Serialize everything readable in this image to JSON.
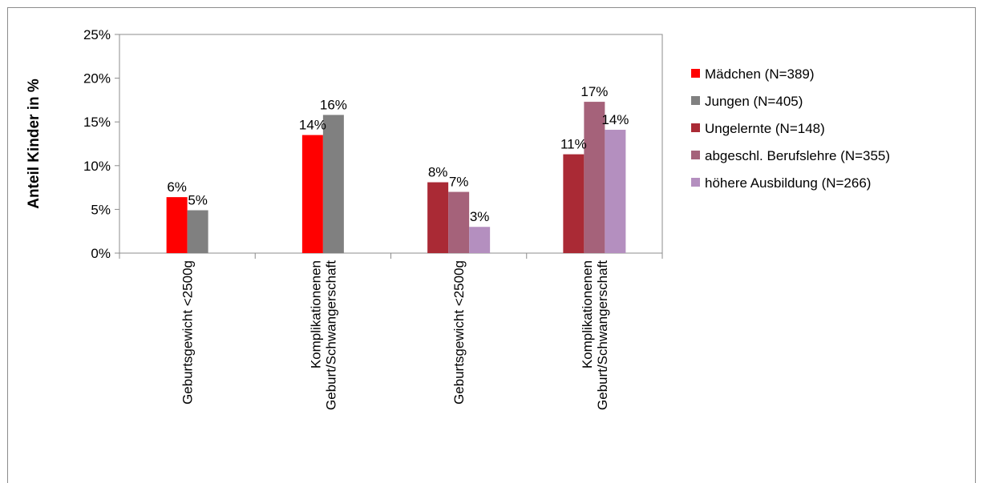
{
  "chart_data": {
    "type": "bar",
    "title": "",
    "xlabel": "",
    "ylabel": "Anteil Kinder in %",
    "ylim": [
      0,
      25
    ],
    "yticks": [
      0,
      5,
      10,
      15,
      20,
      25
    ],
    "ytick_labels": [
      "0%",
      "5%",
      "10%",
      "15%",
      "20%",
      "25%"
    ],
    "grid": false,
    "legend_position": "right",
    "categories": [
      [
        "Geburtsgewicht <2500g"
      ],
      [
        "Komplikationenen",
        "Geburt/Schwangerschaft"
      ],
      [
        "Geburtsgewicht <2500g"
      ],
      [
        "Komplikationenen",
        "Geburt/Schwangerschaft"
      ]
    ],
    "series": [
      {
        "name": "Mädchen (N=389)",
        "color": "#ff0000",
        "values": [
          6.4,
          13.5,
          null,
          null
        ],
        "labels": [
          "6%",
          "14%",
          "",
          ""
        ]
      },
      {
        "name": "Jungen (N=405)",
        "color": "#808080",
        "values": [
          4.9,
          15.8,
          null,
          null
        ],
        "labels": [
          "5%",
          "16%",
          "",
          ""
        ]
      },
      {
        "name": "Ungelernte (N=148)",
        "color": "#aa2a35",
        "values": [
          null,
          null,
          8.1,
          11.3
        ],
        "labels": [
          "",
          "",
          "8%",
          "11%"
        ]
      },
      {
        "name": "abgeschl. Berufslehre (N=355)",
        "color": "#a5627a",
        "values": [
          null,
          null,
          7.0,
          17.3
        ],
        "labels": [
          "",
          "",
          "7%",
          "17%"
        ]
      },
      {
        "name": "höhere Ausbildung (N=266)",
        "color": "#b48fbf",
        "values": [
          null,
          null,
          3.0,
          14.1
        ],
        "labels": [
          "",
          "",
          "3%",
          "14%"
        ]
      }
    ]
  }
}
